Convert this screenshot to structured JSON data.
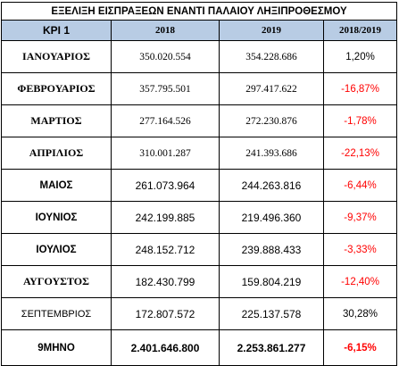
{
  "title": "ΕΞΕΛΙΞΗ ΕΙΣΠΡΑΞΕΩΝ ΕΝΑΝΤΙ ΠΑΛΑΙΟΥ ΛΗΞΙΠΡΟΘΕΣΜΟΥ",
  "headers": [
    "ΚΡΙ 1",
    "2018",
    "2019",
    "2018/2019"
  ],
  "rows": [
    {
      "month": "ΙΑΝΟΥΑΡΙΟΣ",
      "v2018": "350.020.554",
      "v2019": "354.228.686",
      "change": "1,20%",
      "negative": false
    },
    {
      "month": "ΦΕΒΡΟΥΑΡΙΟΣ",
      "v2018": "357.795.501",
      "v2019": "297.417.622",
      "change": "-16,87%",
      "negative": true
    },
    {
      "month": "ΜΑΡΤΙΟΣ",
      "v2018": "277.164.526",
      "v2019": "272.230.876",
      "change": "-1,78%",
      "negative": true
    },
    {
      "month": "ΑΠΡΙΛΙΟΣ",
      "v2018": "310.001.287",
      "v2019": "241.393.686",
      "change": "-22,13%",
      "negative": true
    },
    {
      "month": "ΜΑΙΟΣ",
      "v2018": "261.073.964",
      "v2019": "244.263.816",
      "change": "-6,44%",
      "negative": true
    },
    {
      "month": "ΙΟΥΝΙΟΣ",
      "v2018": "242.199.885",
      "v2019": "219.496.360",
      "change": "-9,37%",
      "negative": true
    },
    {
      "month": "ΙΟΥΛΙΟΣ",
      "v2018": "248.152.712",
      "v2019": "239.888.433",
      "change": "-3,33%",
      "negative": true
    },
    {
      "month": "ΑΥΓΟΥΣΤΟΣ",
      "v2018": "182.430.799",
      "v2019": "159.804.219",
      "change": "-12,40%",
      "negative": true
    },
    {
      "month": "ΣΕΠΤΕΜΒΡΙΟΣ",
      "v2018": "172.807.572",
      "v2019": "225.137.578",
      "change": "30,28%",
      "negative": false
    }
  ],
  "total": {
    "month": "9ΜΗΝΟ",
    "v2018": "2.401.646.800",
    "v2019": "2.253.861.277",
    "change": "-6,15%",
    "negative": true
  },
  "colors": {
    "header_bg": "#b8cce4",
    "negative": "#ff0000"
  }
}
